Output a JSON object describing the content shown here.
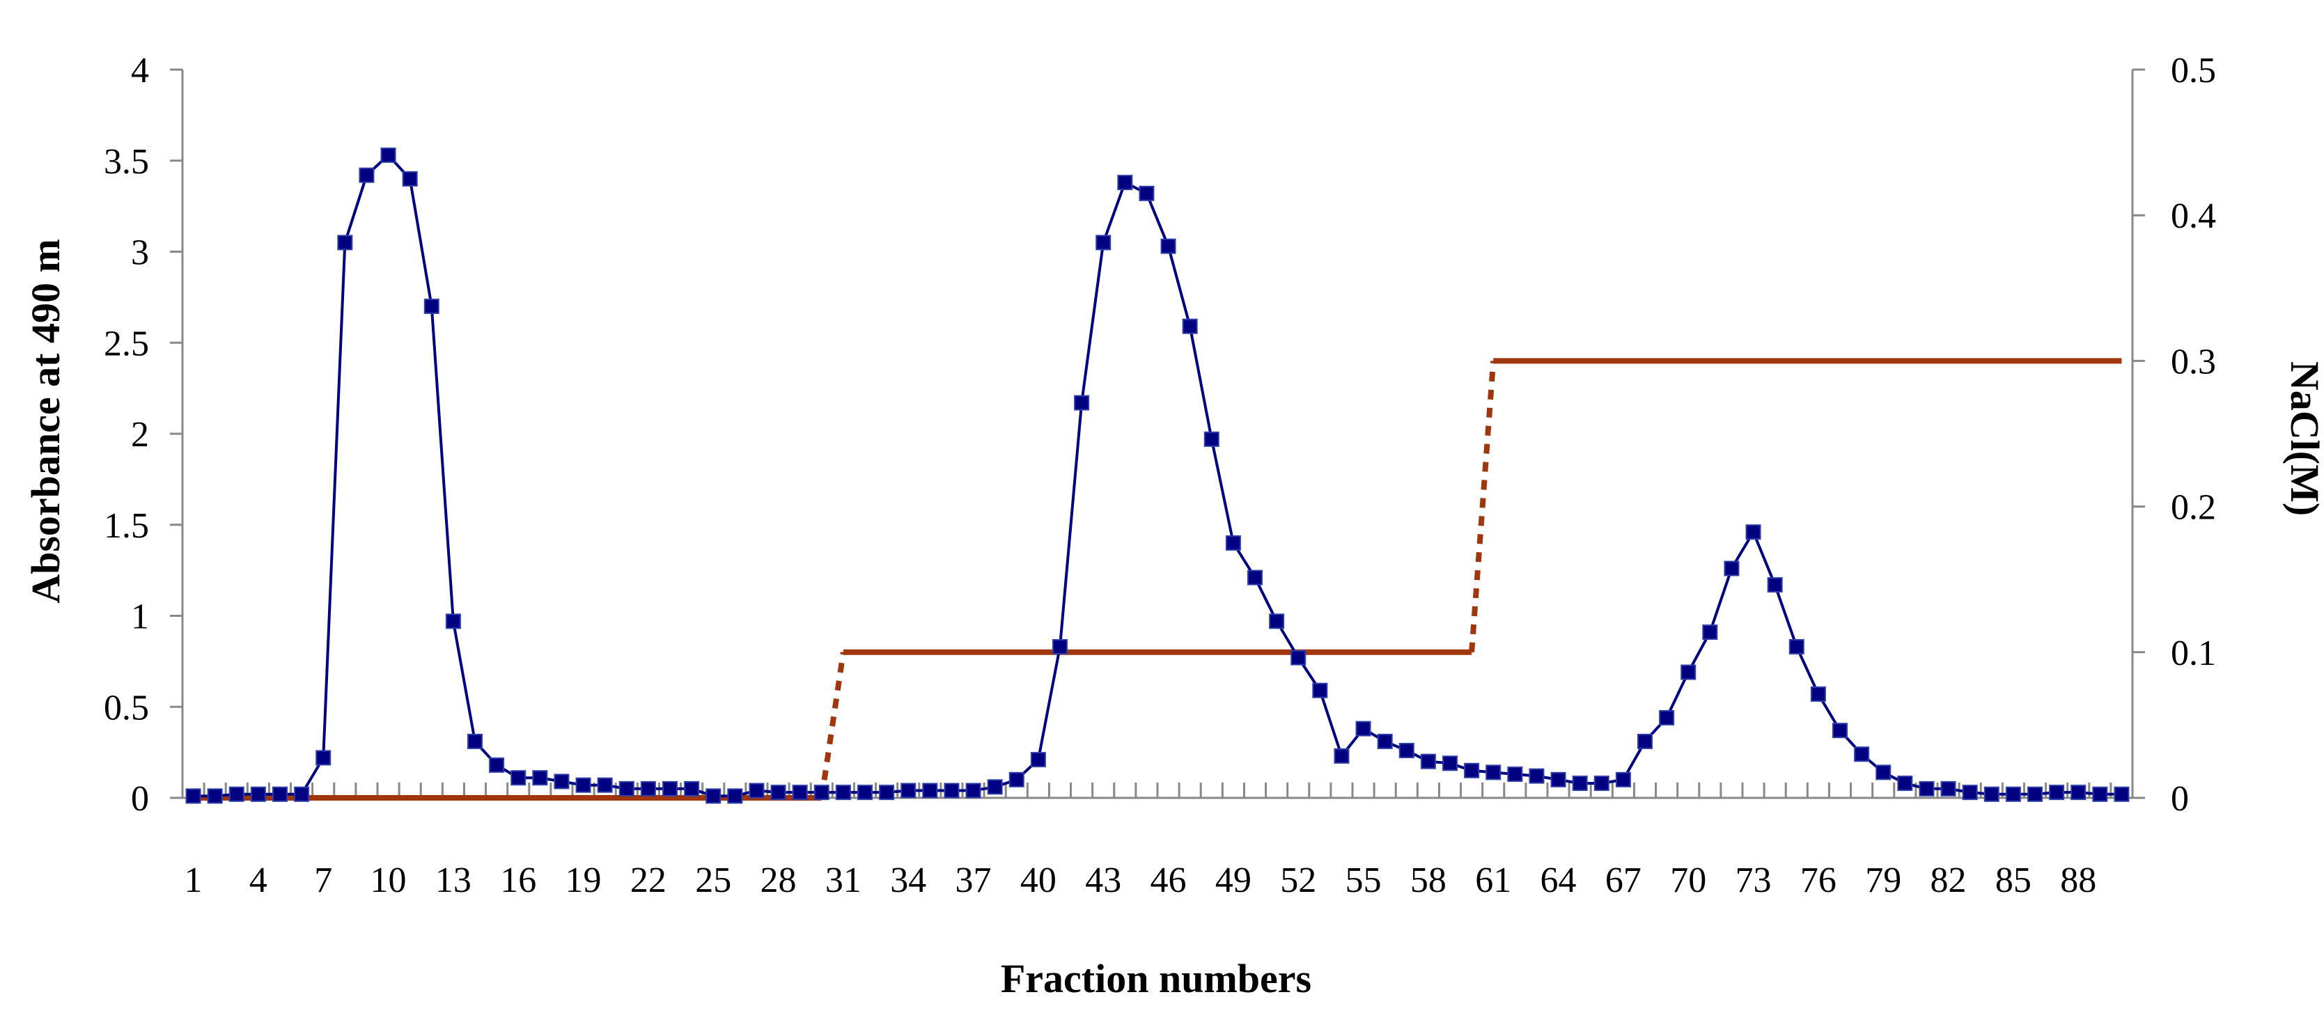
{
  "chart_data": {
    "type": "line",
    "title": "",
    "xlabel": "Fraction numbers",
    "ylabel": "Absorbance at 490 m",
    "y2label": "NaCl(M)",
    "x_tick_labels": [
      "1",
      "4",
      "7",
      "10",
      "13",
      "16",
      "19",
      "22",
      "25",
      "28",
      "31",
      "34",
      "37",
      "40",
      "43",
      "46",
      "49",
      "52",
      "55",
      "58",
      "61",
      "64",
      "67",
      "70",
      "73",
      "76",
      "79",
      "82",
      "85",
      "88"
    ],
    "x_range": [
      1,
      90
    ],
    "ylim": [
      0,
      4
    ],
    "y_ticks": [
      "0",
      "0.5",
      "1",
      "1.5",
      "2",
      "2.5",
      "3",
      "3.5",
      "4"
    ],
    "y2lim": [
      0,
      0.5
    ],
    "y2_ticks": [
      "0",
      "0.1",
      "0.2",
      "0.3",
      "0.4",
      "0.5"
    ],
    "grid": false,
    "legend": "none",
    "series": [
      {
        "axis": "left",
        "color": "#000080",
        "marker": "square",
        "x": [
          1,
          2,
          3,
          4,
          5,
          6,
          7,
          8,
          9,
          10,
          11,
          12,
          13,
          14,
          15,
          16,
          17,
          18,
          19,
          20,
          21,
          22,
          23,
          24,
          25,
          26,
          27,
          28,
          29,
          30,
          31,
          32,
          33,
          34,
          35,
          36,
          37,
          38,
          39,
          40,
          41,
          42,
          43,
          44,
          45,
          46,
          47,
          48,
          49,
          50,
          51,
          52,
          53,
          54,
          55,
          56,
          57,
          58,
          59,
          60,
          61,
          62,
          63,
          64,
          65,
          66,
          67,
          68,
          69,
          70,
          71,
          72,
          73,
          74,
          75,
          76,
          77,
          78,
          79,
          80,
          81,
          82,
          83,
          84,
          85,
          86,
          87,
          88,
          89,
          90
        ],
        "values": [
          0.01,
          0.01,
          0.02,
          0.02,
          0.02,
          0.02,
          0.22,
          3.05,
          3.42,
          3.53,
          3.4,
          2.7,
          0.97,
          0.31,
          0.18,
          0.11,
          0.11,
          0.09,
          0.07,
          0.07,
          0.05,
          0.05,
          0.05,
          0.05,
          0.01,
          0.01,
          0.04,
          0.03,
          0.03,
          0.03,
          0.03,
          0.03,
          0.03,
          0.04,
          0.04,
          0.04,
          0.04,
          0.06,
          0.1,
          0.21,
          0.83,
          2.17,
          3.05,
          3.38,
          3.32,
          3.03,
          2.59,
          1.97,
          1.4,
          1.21,
          0.97,
          0.77,
          0.59,
          0.23,
          0.38,
          0.31,
          0.26,
          0.2,
          0.19,
          0.15,
          0.14,
          0.13,
          0.12,
          0.1,
          0.08,
          0.08,
          0.1,
          0.31,
          0.44,
          0.69,
          0.91,
          1.26,
          1.46,
          1.17,
          0.83,
          0.57,
          0.37,
          0.24,
          0.14,
          0.08,
          0.05,
          0.05,
          0.03,
          0.02,
          0.02,
          0.02,
          0.03,
          0.03,
          0.02,
          0.02
        ]
      },
      {
        "axis": "right",
        "color": "#a0360e",
        "segments": [
          {
            "style": "solid",
            "x": [
              1,
              30
            ],
            "values": [
              0,
              0
            ]
          },
          {
            "style": "dashed",
            "x": [
              30,
              31
            ],
            "values": [
              0,
              0.1
            ]
          },
          {
            "style": "solid",
            "x": [
              31,
              60
            ],
            "values": [
              0.1,
              0.1
            ]
          },
          {
            "style": "dashed",
            "x": [
              60,
              61
            ],
            "values": [
              0.1,
              0.3
            ]
          },
          {
            "style": "solid",
            "x": [
              61,
              90
            ],
            "values": [
              0.3,
              0.3
            ]
          }
        ]
      }
    ]
  }
}
